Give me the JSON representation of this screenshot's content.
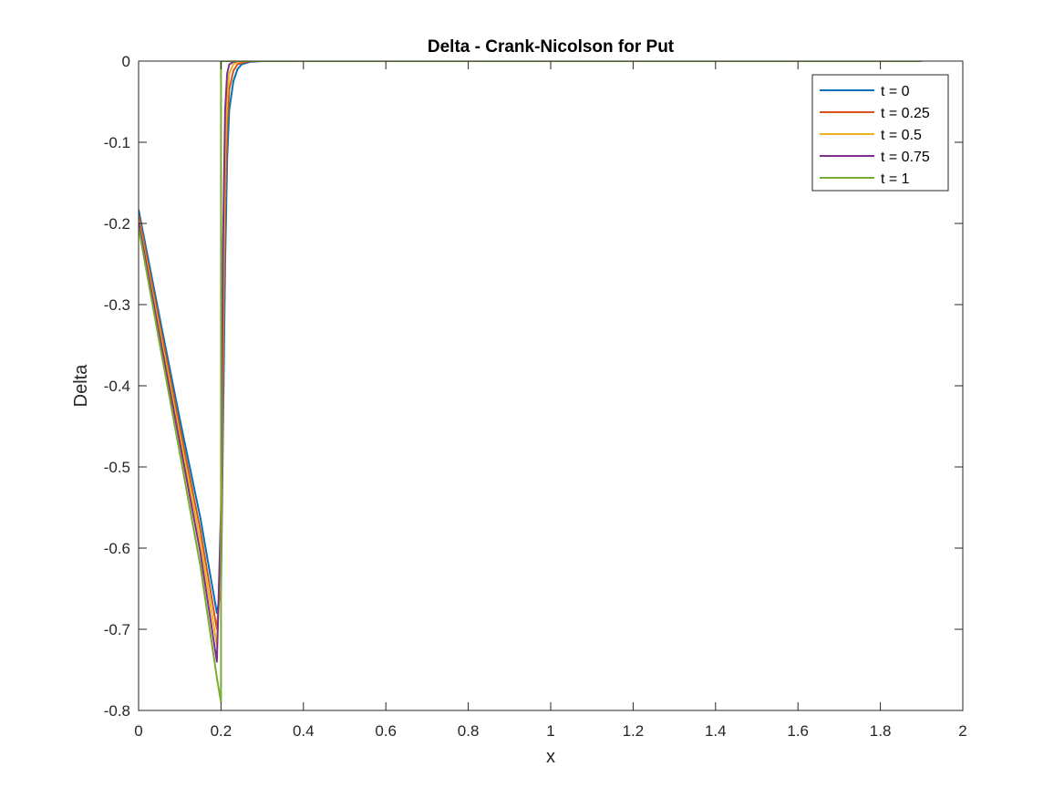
{
  "chart_data": {
    "type": "line",
    "title": "Delta - Crank-Nicolson for Put",
    "xlabel": "x",
    "ylabel": "Delta",
    "xlim": [
      0,
      2
    ],
    "ylim": [
      -0.8,
      0
    ],
    "xticks": [
      0,
      0.2,
      0.4,
      0.6,
      0.8,
      1,
      1.2,
      1.4,
      1.6,
      1.8,
      2
    ],
    "xtick_labels": [
      "0",
      "0.2",
      "0.4",
      "0.6",
      "0.8",
      "1",
      "1.2",
      "1.4",
      "1.6",
      "1.8",
      "2"
    ],
    "yticks": [
      0,
      -0.1,
      -0.2,
      -0.3,
      -0.4,
      -0.5,
      -0.6,
      -0.7,
      -0.8
    ],
    "ytick_labels": [
      "0",
      "-0.1",
      "-0.2",
      "-0.3",
      "-0.4",
      "-0.5",
      "-0.6",
      "-0.7",
      "-0.8"
    ],
    "grid": false,
    "legend_position": "top-right",
    "series": [
      {
        "name": "t = 0",
        "color": "#0072BD",
        "points": [
          [
            0,
            -0.183
          ],
          [
            0.05,
            -0.313
          ],
          [
            0.1,
            -0.441
          ],
          [
            0.15,
            -0.563
          ],
          [
            0.19,
            -0.68
          ],
          [
            0.2,
            -0.65
          ],
          [
            0.205,
            -0.45
          ],
          [
            0.21,
            -0.25
          ],
          [
            0.215,
            -0.12
          ],
          [
            0.22,
            -0.06
          ],
          [
            0.23,
            -0.025
          ],
          [
            0.24,
            -0.01
          ],
          [
            0.25,
            -0.004
          ],
          [
            0.27,
            -0.001
          ],
          [
            0.3,
            0
          ],
          [
            1.9,
            0
          ]
        ]
      },
      {
        "name": "t = 0.25",
        "color": "#D95319",
        "points": [
          [
            0,
            -0.189
          ],
          [
            0.05,
            -0.321
          ],
          [
            0.1,
            -0.451
          ],
          [
            0.15,
            -0.578
          ],
          [
            0.19,
            -0.7
          ],
          [
            0.2,
            -0.63
          ],
          [
            0.205,
            -0.38
          ],
          [
            0.21,
            -0.18
          ],
          [
            0.215,
            -0.08
          ],
          [
            0.22,
            -0.035
          ],
          [
            0.23,
            -0.012
          ],
          [
            0.24,
            -0.004
          ],
          [
            0.26,
            -0.001
          ],
          [
            0.28,
            0
          ],
          [
            1.9,
            0
          ]
        ]
      },
      {
        "name": "t = 0.5",
        "color": "#EDB120",
        "points": [
          [
            0,
            -0.196
          ],
          [
            0.05,
            -0.329
          ],
          [
            0.1,
            -0.461
          ],
          [
            0.15,
            -0.592
          ],
          [
            0.19,
            -0.72
          ],
          [
            0.2,
            -0.6
          ],
          [
            0.205,
            -0.3
          ],
          [
            0.21,
            -0.12
          ],
          [
            0.215,
            -0.045
          ],
          [
            0.22,
            -0.015
          ],
          [
            0.23,
            -0.004
          ],
          [
            0.24,
            -0.001
          ],
          [
            0.26,
            0
          ],
          [
            1.9,
            0
          ]
        ]
      },
      {
        "name": "t = 0.75",
        "color": "#7E2F8E",
        "points": [
          [
            0,
            -0.199
          ],
          [
            0.05,
            -0.336
          ],
          [
            0.1,
            -0.47
          ],
          [
            0.15,
            -0.606
          ],
          [
            0.19,
            -0.74
          ],
          [
            0.2,
            -0.55
          ],
          [
            0.205,
            -0.22
          ],
          [
            0.21,
            -0.06
          ],
          [
            0.215,
            -0.015
          ],
          [
            0.22,
            -0.004
          ],
          [
            0.23,
            -0.001
          ],
          [
            0.24,
            0
          ],
          [
            1.9,
            0
          ]
        ]
      },
      {
        "name": "t = 1",
        "color": "#77AC30",
        "points": [
          [
            0,
            -0.205
          ],
          [
            0.05,
            -0.345
          ],
          [
            0.1,
            -0.483
          ],
          [
            0.15,
            -0.622
          ],
          [
            0.19,
            -0.76
          ],
          [
            0.2,
            -0.79
          ],
          [
            0.2,
            0
          ],
          [
            1.9,
            0
          ]
        ]
      }
    ]
  }
}
